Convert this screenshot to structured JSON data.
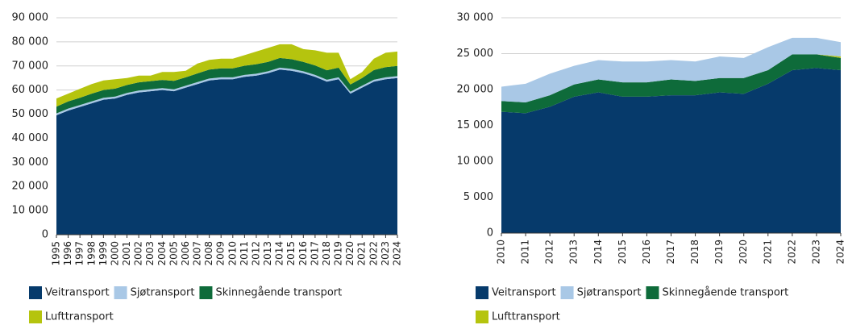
{
  "chart_data": [
    {
      "type": "stacked_area",
      "categories": [
        "1995",
        "1996",
        "1997",
        "1998",
        "1999",
        "2000",
        "2001",
        "2002",
        "2003",
        "2004",
        "2005",
        "2006",
        "2007",
        "2008",
        "2009",
        "2010",
        "2011",
        "2012",
        "2013",
        "2014",
        "2015",
        "2016",
        "2017",
        "2018",
        "2019",
        "2020",
        "2021",
        "2022",
        "2023",
        "2024"
      ],
      "series": [
        {
          "name": "Veitransport",
          "color": "#063a6b",
          "values": [
            49500,
            51500,
            53000,
            54500,
            56000,
            56500,
            58000,
            59000,
            59500,
            60000,
            59500,
            61000,
            62500,
            64000,
            64500,
            64500,
            65500,
            66000,
            67000,
            68500,
            68000,
            67000,
            65500,
            63500,
            64500,
            58500,
            61000,
            63500,
            64500,
            65000
          ]
        },
        {
          "name": "Sjøtransport",
          "color": "#a9c8e6",
          "values": [
            800,
            800,
            800,
            800,
            800,
            800,
            800,
            800,
            800,
            800,
            800,
            800,
            800,
            800,
            800,
            800,
            800,
            800,
            800,
            800,
            800,
            800,
            800,
            800,
            800,
            800,
            800,
            800,
            800,
            800
          ]
        },
        {
          "name": "Skinnegående transport",
          "color": "#0e6b3a",
          "values": [
            2800,
            3000,
            3000,
            3200,
            3200,
            3300,
            3300,
            3400,
            3400,
            3400,
            3500,
            3500,
            3600,
            3700,
            3700,
            3700,
            3800,
            3900,
            3900,
            4000,
            4000,
            3900,
            3900,
            3900,
            4000,
            3000,
            3200,
            4000,
            4200,
            4200
          ]
        },
        {
          "name": "Lufttransport",
          "color": "#b5c40e",
          "values": [
            3400,
            3200,
            3700,
            4000,
            4000,
            3900,
            2900,
            2800,
            2300,
            3300,
            3700,
            2700,
            4100,
            4000,
            4000,
            4000,
            4400,
            5300,
            5800,
            5700,
            6200,
            5300,
            6300,
            7300,
            6200,
            2200,
            2500,
            4700,
            6000,
            6000
          ]
        }
      ],
      "stack_order": [
        0,
        1,
        2,
        3
      ],
      "ylim": [
        0,
        90000
      ],
      "yticks": [
        0,
        {
          "value": 10000,
          "label": "10 000"
        },
        {
          "value": 20000,
          "label": "20 000"
        },
        {
          "value": 30000,
          "label": "30 000"
        },
        {
          "value": 40000,
          "label": "40 000"
        },
        {
          "value": 50000,
          "label": "50 000"
        },
        {
          "value": 60000,
          "label": "60 000"
        },
        {
          "value": 70000,
          "label": "70 000"
        },
        {
          "value": 80000,
          "label": "80 000"
        },
        {
          "value": 90000,
          "label": "90 000"
        }
      ],
      "grid": true
    },
    {
      "type": "stacked_area",
      "categories": [
        "2010",
        "2011",
        "2012",
        "2013",
        "2014",
        "2015",
        "2016",
        "2017",
        "2018",
        "2019",
        "2020",
        "2021",
        "2022",
        "2023",
        "2024"
      ],
      "series": [
        {
          "name": "Veitransport",
          "color": "#063a6b",
          "values": [
            16900,
            16700,
            17600,
            19000,
            19600,
            19000,
            19000,
            19200,
            19200,
            19600,
            19400,
            20800,
            22700,
            23000,
            22700
          ]
        },
        {
          "name": "Sjøtransport",
          "color": "#a9c8e6",
          "values": [
            2000,
            2600,
            3000,
            2600,
            2700,
            2900,
            2900,
            2700,
            2700,
            3000,
            2800,
            3200,
            2300,
            2300,
            2000
          ]
        },
        {
          "name": "Skinnegående transport",
          "color": "#0e6b3a",
          "values": [
            1500,
            1500,
            1600,
            1700,
            1800,
            2000,
            2000,
            2200,
            2000,
            2000,
            2200,
            1900,
            2200,
            1900,
            1700
          ]
        },
        {
          "name": "Lufttransport",
          "color": "#b5c40e",
          "values": [
            0,
            0,
            0,
            0,
            0,
            0,
            0,
            0,
            0,
            0,
            0,
            0,
            0,
            0,
            200
          ]
        }
      ],
      "stack_order": [
        0,
        2,
        3,
        1
      ],
      "ylim": [
        0,
        30000
      ],
      "yticks": [
        0,
        {
          "value": 5000,
          "label": "5 000"
        },
        {
          "value": 10000,
          "label": "10 000"
        },
        {
          "value": 15000,
          "label": "15 000"
        },
        {
          "value": 20000,
          "label": "20 000"
        },
        {
          "value": 25000,
          "label": "25 000"
        },
        {
          "value": 30000,
          "label": "30 000"
        }
      ],
      "grid": true
    }
  ]
}
